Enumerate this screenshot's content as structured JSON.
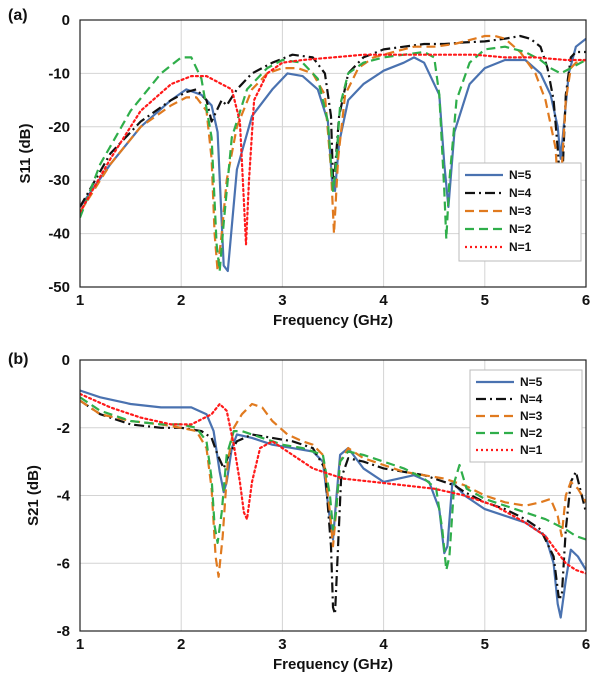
{
  "chart_data": [
    {
      "panel_label": "(a)",
      "type": "line",
      "title": "",
      "xlabel": "Frequency (GHz)",
      "ylabel": "S11 (dB)",
      "xlim": [
        1,
        6
      ],
      "ylim": [
        -50,
        0
      ],
      "xticks": [
        "1",
        "2",
        "3",
        "4",
        "5",
        "6"
      ],
      "yticks": [
        "0",
        "-10",
        "-20",
        "-30",
        "-40",
        "-50"
      ],
      "grid": true,
      "legend_position": "bottom-right",
      "series": [
        {
          "name": "N=5",
          "color": "#4a72b0",
          "dash": "solid",
          "x": [
            1.0,
            1.3,
            1.6,
            1.9,
            2.05,
            2.2,
            2.3,
            2.36,
            2.42,
            2.46,
            2.55,
            2.7,
            2.9,
            3.05,
            3.2,
            3.35,
            3.45,
            3.49,
            3.52,
            3.56,
            3.65,
            3.8,
            4.0,
            4.2,
            4.3,
            4.4,
            4.55,
            4.6,
            4.64,
            4.7,
            4.85,
            5.0,
            5.2,
            5.4,
            5.55,
            5.65,
            5.72,
            5.75,
            5.78,
            5.83,
            5.9,
            6.0
          ],
          "y": [
            -35,
            -27,
            -20,
            -15,
            -13,
            -14,
            -16,
            -21,
            -46,
            -47,
            -28,
            -18,
            -13,
            -10,
            -10.5,
            -13,
            -19,
            -30,
            -32,
            -23,
            -15,
            -12,
            -9.5,
            -8,
            -7,
            -8,
            -14,
            -27,
            -35,
            -21,
            -12,
            -9,
            -7.5,
            -7.5,
            -10,
            -14,
            -20,
            -26,
            -20,
            -10,
            -5,
            -3.5
          ]
        },
        {
          "name": "N=4",
          "color": "#111111",
          "dash": "dashdot",
          "x": [
            1.0,
            1.3,
            1.6,
            1.9,
            2.05,
            2.15,
            2.25,
            2.3,
            2.35,
            2.4,
            2.45,
            2.55,
            2.7,
            2.9,
            3.1,
            3.3,
            3.42,
            3.48,
            3.5,
            3.52,
            3.56,
            3.65,
            3.8,
            4.0,
            4.2,
            4.4,
            4.6,
            4.8,
            5.0,
            5.2,
            5.35,
            5.45,
            5.55,
            5.62,
            5.68,
            5.72,
            5.75,
            5.77,
            5.8,
            5.85,
            5.9,
            6.0
          ],
          "y": [
            -35,
            -25,
            -19,
            -15,
            -13.5,
            -13,
            -15,
            -19,
            -17,
            -15,
            -16,
            -13,
            -10,
            -8,
            -6.5,
            -7,
            -10,
            -18,
            -30,
            -28,
            -18,
            -10,
            -7,
            -5.5,
            -5,
            -4.5,
            -4.5,
            -4.2,
            -4,
            -3.5,
            -3,
            -3.5,
            -5,
            -9,
            -15,
            -24,
            -32,
            -28,
            -14,
            -7,
            -6,
            -6
          ]
        },
        {
          "name": "N=3",
          "color": "#e07a1f",
          "dash": "dashed",
          "x": [
            1.0,
            1.3,
            1.6,
            1.9,
            2.05,
            2.15,
            2.25,
            2.3,
            2.33,
            2.36,
            2.4,
            2.45,
            2.55,
            2.7,
            2.85,
            3.0,
            3.15,
            3.3,
            3.42,
            3.48,
            3.51,
            3.55,
            3.62,
            3.75,
            3.9,
            4.1,
            4.3,
            4.5,
            4.7,
            4.9,
            5.0,
            5.1,
            5.2,
            5.35,
            5.5,
            5.6,
            5.7,
            5.73,
            5.76,
            5.8,
            5.85,
            5.9,
            6.0
          ],
          "y": [
            -36,
            -27,
            -20,
            -16,
            -14.5,
            -14.5,
            -17,
            -26,
            -40,
            -47,
            -40,
            -30,
            -20,
            -13,
            -10,
            -9,
            -9,
            -10,
            -14,
            -28,
            -40,
            -26,
            -14,
            -9,
            -7,
            -6,
            -5,
            -5,
            -4.5,
            -3.5,
            -3,
            -3,
            -3.5,
            -6,
            -10,
            -15,
            -24,
            -34,
            -28,
            -15,
            -9,
            -8,
            -7.5
          ]
        },
        {
          "name": "N=2",
          "color": "#2fae4a",
          "dash": "dashed",
          "x": [
            1.0,
            1.2,
            1.5,
            1.8,
            2.0,
            2.1,
            2.2,
            2.3,
            2.35,
            2.38,
            2.42,
            2.5,
            2.65,
            2.85,
            3.0,
            3.2,
            3.35,
            3.45,
            3.5,
            3.53,
            3.57,
            3.65,
            3.8,
            4.0,
            4.2,
            4.4,
            4.5,
            4.55,
            4.6,
            4.62,
            4.65,
            4.72,
            4.85,
            5.0,
            5.2,
            5.4,
            5.55,
            5.65,
            5.75,
            5.85,
            5.95,
            6.0
          ],
          "y": [
            -37,
            -27,
            -17,
            -10,
            -7,
            -7,
            -11,
            -22,
            -42,
            -47,
            -38,
            -22,
            -13,
            -9,
            -7.5,
            -8,
            -11,
            -19,
            -32,
            -27,
            -16,
            -10,
            -8,
            -7,
            -6.5,
            -6,
            -7,
            -14,
            -32,
            -41,
            -30,
            -15,
            -8,
            -5.5,
            -5,
            -6,
            -7.5,
            -9,
            -10,
            -9,
            -8,
            -7.5
          ]
        },
        {
          "name": "N=1",
          "color": "#ff1a1a",
          "dash": "dotted",
          "x": [
            1.0,
            1.3,
            1.6,
            1.9,
            2.1,
            2.25,
            2.4,
            2.5,
            2.58,
            2.62,
            2.64,
            2.67,
            2.72,
            2.85,
            3.0,
            3.2,
            3.5,
            3.8,
            4.0,
            4.3,
            4.6,
            4.9,
            5.2,
            5.5,
            5.8,
            6.0
          ],
          "y": [
            -36,
            -26,
            -17,
            -12,
            -10.5,
            -10.5,
            -12,
            -13,
            -19,
            -34,
            -42,
            -30,
            -15,
            -10,
            -8,
            -7.5,
            -7,
            -6.5,
            -6.5,
            -6.5,
            -6.5,
            -6.5,
            -7,
            -7,
            -7.5,
            -7.5
          ]
        }
      ]
    },
    {
      "panel_label": "(b)",
      "type": "line",
      "title": "",
      "xlabel": "Frequency (GHz)",
      "ylabel": "S21 (dB)",
      "xlim": [
        1,
        6
      ],
      "ylim": [
        -8,
        0
      ],
      "xticks": [
        "1",
        "2",
        "3",
        "4",
        "5",
        "6"
      ],
      "yticks": [
        "0",
        "-2",
        "-4",
        "-6",
        "-8"
      ],
      "grid": true,
      "legend_position": "top-right",
      "series": [
        {
          "name": "N=5",
          "color": "#4a72b0",
          "dash": "solid",
          "x": [
            1.0,
            1.2,
            1.5,
            1.8,
            2.1,
            2.25,
            2.32,
            2.38,
            2.42,
            2.45,
            2.5,
            2.55,
            2.7,
            2.9,
            3.1,
            3.3,
            3.4,
            3.46,
            3.5,
            3.53,
            3.57,
            3.65,
            3.8,
            4.0,
            4.15,
            4.3,
            4.45,
            4.55,
            4.6,
            4.63,
            4.68,
            4.8,
            5.0,
            5.2,
            5.4,
            5.6,
            5.68,
            5.72,
            5.75,
            5.8,
            5.85,
            5.92,
            6.0
          ],
          "y": [
            -0.9,
            -1.1,
            -1.3,
            -1.4,
            -1.4,
            -1.6,
            -2.1,
            -3.3,
            -3.9,
            -3.6,
            -2.6,
            -2.2,
            -2.3,
            -2.5,
            -2.6,
            -2.7,
            -3.0,
            -4.5,
            -5.3,
            -4.2,
            -2.8,
            -2.6,
            -3.2,
            -3.6,
            -3.5,
            -3.4,
            -3.6,
            -4.4,
            -5.7,
            -5.5,
            -3.6,
            -4.0,
            -4.4,
            -4.6,
            -4.8,
            -5.2,
            -6.0,
            -7.2,
            -7.6,
            -6.5,
            -5.6,
            -5.8,
            -6.2
          ]
        },
        {
          "name": "N=4",
          "color": "#111111",
          "dash": "dashdot",
          "x": [
            1.0,
            1.2,
            1.5,
            1.8,
            2.0,
            2.2,
            2.3,
            2.36,
            2.42,
            2.47,
            2.55,
            2.7,
            2.9,
            3.1,
            3.3,
            3.42,
            3.48,
            3.5,
            3.52,
            3.54,
            3.58,
            3.65,
            3.8,
            4.0,
            4.2,
            4.4,
            4.6,
            4.7,
            4.8,
            5.0,
            5.2,
            5.4,
            5.55,
            5.68,
            5.73,
            5.76,
            5.8,
            5.85,
            5.9,
            6.0
          ],
          "y": [
            -1.2,
            -1.6,
            -1.9,
            -2.0,
            -2.0,
            -2.1,
            -2.3,
            -2.8,
            -3.2,
            -2.8,
            -2.4,
            -2.2,
            -2.3,
            -2.4,
            -2.6,
            -3.2,
            -5.5,
            -7.3,
            -7.5,
            -6.2,
            -3.5,
            -2.9,
            -3.0,
            -3.2,
            -3.3,
            -3.4,
            -3.6,
            -3.7,
            -3.9,
            -4.2,
            -4.4,
            -4.7,
            -5.0,
            -5.8,
            -7.0,
            -7.0,
            -5.0,
            -3.6,
            -3.3,
            -4.5
          ]
        },
        {
          "name": "N=3",
          "color": "#e07a1f",
          "dash": "dashed",
          "x": [
            1.0,
            1.2,
            1.5,
            1.8,
            2.0,
            2.15,
            2.25,
            2.3,
            2.34,
            2.37,
            2.41,
            2.46,
            2.52,
            2.6,
            2.7,
            2.8,
            2.9,
            3.05,
            3.2,
            3.3,
            3.4,
            3.47,
            3.5,
            3.53,
            3.57,
            3.65,
            3.8,
            4.0,
            4.2,
            4.4,
            4.6,
            4.8,
            5.0,
            5.2,
            5.4,
            5.55,
            5.65,
            5.72,
            5.76,
            5.8,
            5.85,
            5.92,
            6.0
          ],
          "y": [
            -1.2,
            -1.6,
            -1.8,
            -1.9,
            -2.0,
            -2.1,
            -2.6,
            -3.8,
            -5.8,
            -6.4,
            -5.2,
            -3.0,
            -2.0,
            -1.6,
            -1.3,
            -1.4,
            -1.8,
            -2.2,
            -2.4,
            -2.5,
            -2.8,
            -4.5,
            -5.5,
            -4.5,
            -3.0,
            -2.6,
            -2.9,
            -3.1,
            -3.3,
            -3.4,
            -3.5,
            -3.7,
            -4.0,
            -4.2,
            -4.3,
            -4.2,
            -4.1,
            -4.6,
            -5.2,
            -4.0,
            -3.6,
            -3.8,
            -4.2
          ]
        },
        {
          "name": "N=2",
          "color": "#2fae4a",
          "dash": "dashed",
          "x": [
            1.0,
            1.2,
            1.5,
            1.8,
            2.0,
            2.15,
            2.25,
            2.3,
            2.33,
            2.36,
            2.4,
            2.45,
            2.52,
            2.6,
            2.8,
            3.0,
            3.2,
            3.4,
            3.47,
            3.5,
            3.53,
            3.57,
            3.65,
            3.8,
            4.0,
            4.2,
            4.4,
            4.52,
            4.58,
            4.62,
            4.65,
            4.7,
            4.75,
            4.82,
            5.0,
            5.2,
            5.4,
            5.6,
            5.8,
            5.9,
            6.0
          ],
          "y": [
            -1.1,
            -1.5,
            -1.8,
            -1.9,
            -1.9,
            -2.0,
            -2.4,
            -3.5,
            -4.9,
            -5.4,
            -4.5,
            -2.8,
            -2.1,
            -2.1,
            -2.3,
            -2.5,
            -2.6,
            -2.8,
            -4.0,
            -5.0,
            -4.5,
            -3.0,
            -2.7,
            -2.8,
            -3.0,
            -3.2,
            -3.5,
            -3.8,
            -5.0,
            -6.2,
            -5.8,
            -3.6,
            -3.1,
            -3.8,
            -4.1,
            -4.3,
            -4.5,
            -4.7,
            -5.0,
            -5.2,
            -5.3
          ]
        },
        {
          "name": "N=1",
          "color": "#ff1a1a",
          "dash": "dotted",
          "x": [
            1.0,
            1.3,
            1.6,
            1.9,
            2.1,
            2.3,
            2.38,
            2.45,
            2.52,
            2.58,
            2.62,
            2.65,
            2.7,
            2.78,
            2.9,
            3.1,
            3.3,
            3.6,
            3.9,
            4.2,
            4.5,
            4.8,
            5.1,
            5.4,
            5.6,
            5.7,
            5.8,
            5.9,
            6.0
          ],
          "y": [
            -1.0,
            -1.4,
            -1.7,
            -1.9,
            -1.9,
            -1.6,
            -1.3,
            -1.5,
            -2.5,
            -3.6,
            -4.5,
            -4.7,
            -3.6,
            -2.6,
            -2.4,
            -2.8,
            -3.2,
            -3.5,
            -3.6,
            -3.7,
            -3.8,
            -4.0,
            -4.3,
            -4.8,
            -5.2,
            -5.6,
            -6.0,
            -6.2,
            -6.3
          ]
        }
      ]
    }
  ]
}
